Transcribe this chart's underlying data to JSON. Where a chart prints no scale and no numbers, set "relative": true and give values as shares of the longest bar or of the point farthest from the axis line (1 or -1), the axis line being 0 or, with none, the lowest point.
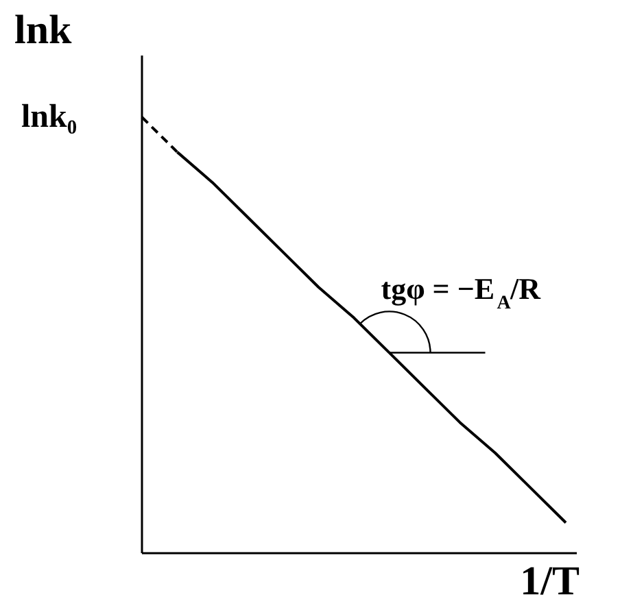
{
  "chart_data": {
    "type": "line",
    "relative": true,
    "xlabel": "1/T",
    "ylabel": "lnk",
    "categories": [
      null,
      null,
      null,
      null,
      null,
      null,
      null,
      null,
      null,
      null,
      null,
      null,
      null
    ],
    "series": [
      {
        "color": "#000000",
        "line_style": "dashed",
        "values": [
          1,
          0.92,
          null,
          null,
          null,
          null,
          null,
          null,
          null,
          null,
          null,
          null,
          null
        ]
      },
      {
        "color": "#000000",
        "line_style": "solid",
        "values": [
          null,
          0.92,
          0.85,
          0.77,
          0.69,
          0.61,
          0.54,
          0.46,
          0.38,
          0.3,
          0.23,
          0.15,
          0.07
        ]
      }
    ],
    "annotations": [
      "lnk₀",
      "tgφ = −E$_{A}$/R"
    ],
    "ref_lines": [
      {
        "axis": "y",
        "value": 0.46,
        "color": "#000000",
        "line_style": "solid"
      }
    ]
  }
}
